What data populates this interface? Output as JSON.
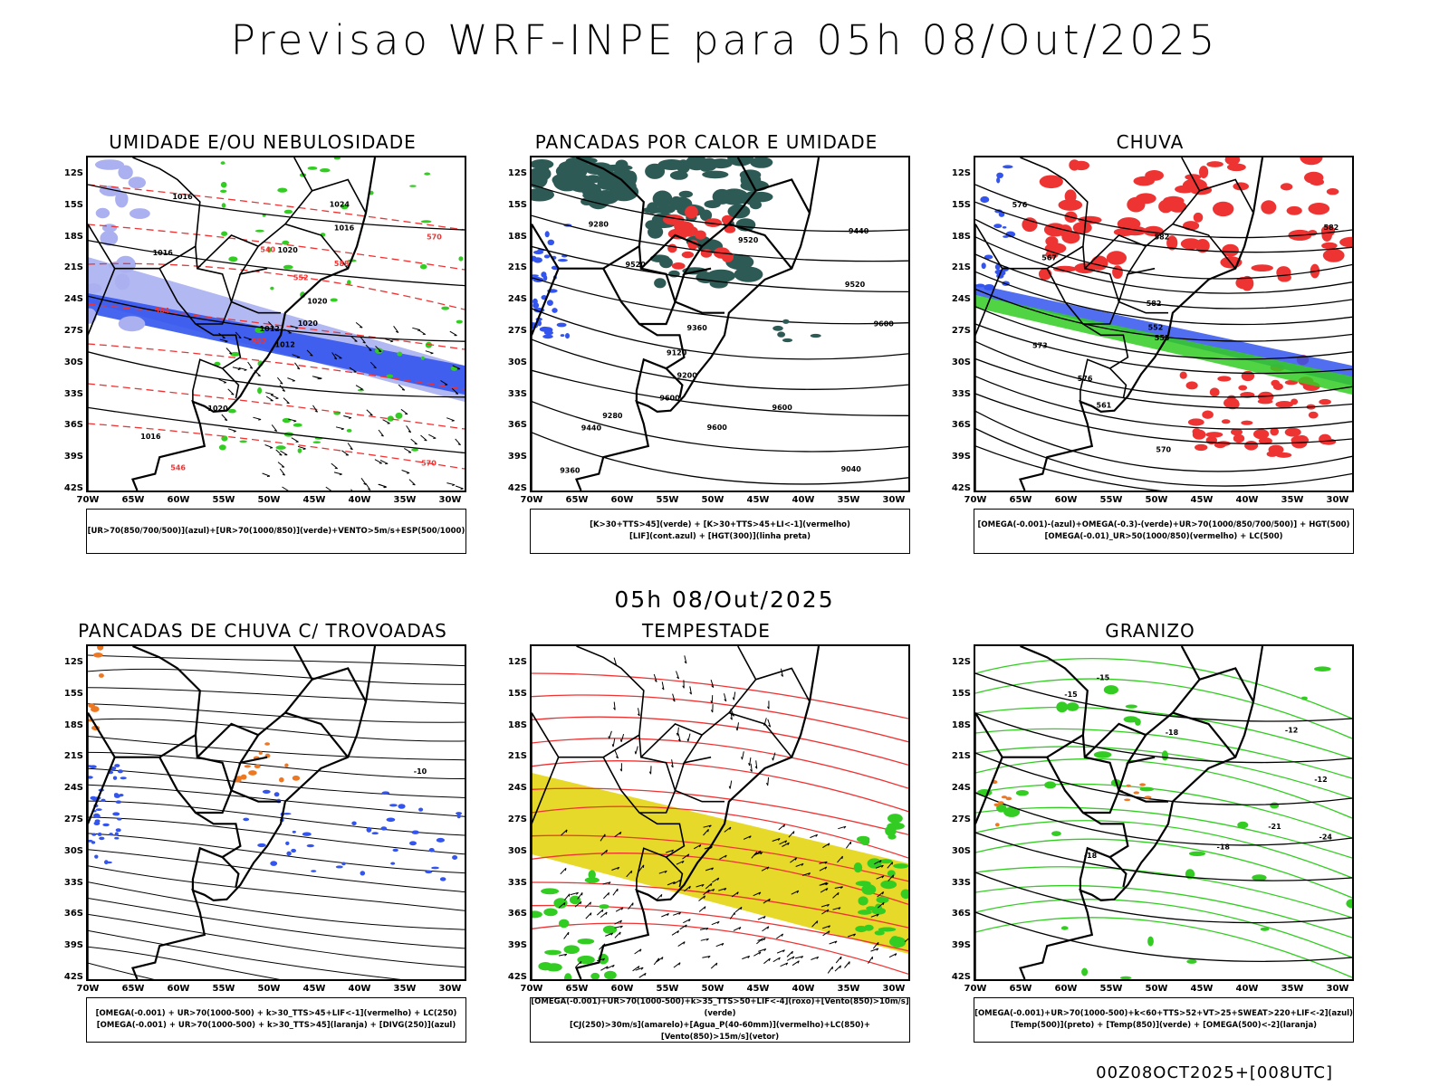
{
  "header": {
    "title": "Previsao WRF-INPE  para 05h 08/Out/2025"
  },
  "mid_date": "05h 08/Out/2025",
  "footer": "00Z08OCT2025+[008UTC]",
  "axes": {
    "lat": [
      "12S",
      "15S",
      "18S",
      "21S",
      "24S",
      "27S",
      "30S",
      "33S",
      "36S",
      "39S",
      "42S"
    ],
    "lon": [
      "70W",
      "65W",
      "60W",
      "55W",
      "50W",
      "45W",
      "40W",
      "35W",
      "30W"
    ]
  },
  "colors": {
    "blue": "#3355ee",
    "light_blue": "#aab0f0",
    "green": "#33cc22",
    "red": "#ee3333",
    "dark_teal": "#2e5a55",
    "yellow": "#e6d92a",
    "orange": "#ee7722"
  },
  "panels": [
    {
      "title": "UMIDADE E/OU NEBULOSIDADE",
      "legend": [
        "[UR>70(850/700/500)](azul)+[UR>70(1000/850)](verde)+VENTO>5m/s+ESP(500/1000)"
      ],
      "contour_labels": [
        "1012",
        "1016",
        "1012",
        "1016",
        "1020",
        "1020",
        "1024",
        "1020",
        "1016",
        "1020",
        "1016",
        "570",
        "564",
        "570",
        "582",
        "588",
        "546",
        "540",
        "552"
      ]
    },
    {
      "title": "PANCADAS POR CALOR E UMIDADE",
      "legend": [
        "[K>30+TTS>45](verde) + [K>30+TTS>45+LI<-1](vermelho)",
        "[LIF](cont.azul) + [HGT(300)](linha preta)"
      ],
      "contour_labels": [
        "9600",
        "9520",
        "9600",
        "9600",
        "9600",
        "9520",
        "9440",
        "9360",
        "9440",
        "9360",
        "9280",
        "9200",
        "9120",
        "9040",
        "9280",
        "9520"
      ]
    },
    {
      "title": "CHUVA",
      "legend": [
        "[OMEGA(-0.001)-(azul)+OMEGA(-0.3)-(verde)+UR>70(1000/850/700/500)] + HGT(500)",
        "[OMEGA(-0.01)_UR>50(1000/850)(vermelho) + LC(500)"
      ],
      "contour_labels": [
        "582",
        "582",
        "582",
        "576",
        "576",
        "570",
        "567",
        "561",
        "555",
        "552",
        "573"
      ]
    },
    {
      "title": "PANCADAS DE CHUVA C/ TROVOADAS",
      "legend": [
        "[OMEGA(-0.001) + UR>70(1000-500) + k>30_TTS>45+LIF<-1](vermelho) + LC(250)",
        "[OMEGA(-0.001) + UR>70(1000-500) + k>30_TTS>45](laranja) + [DIVG(250)](azul)"
      ],
      "contour_labels": [
        "-10"
      ]
    },
    {
      "title": "TEMPESTADE",
      "legend": [
        "[OMEGA(-0.001)+UR>70(1000-500)+k>35_TTS>50+LIF<-4](roxo)+[Vento(850)>10m/s](verde)",
        "[CJ(250)>30m/s](amarelo)+[Agua_P(40-60mm)](vermelho)+LC(850)+[Vento(850)>15m/s](vetor)"
      ],
      "contour_labels": []
    },
    {
      "title": "GRANIZO",
      "legend": [
        "[OMEGA(-0.001)+UR>70(1000-500)+k<60+TTS>52+VT>25+SWEAT>220+LIF<-2](azul)",
        "[Temp(500)](preto) + [Temp(850)](verde) + [OMEGA(500)<-2](laranja)"
      ],
      "contour_labels": [
        "-12",
        "-15",
        "-18",
        "-12",
        "-15",
        "-18",
        "-21",
        "-24",
        "-18"
      ]
    }
  ]
}
